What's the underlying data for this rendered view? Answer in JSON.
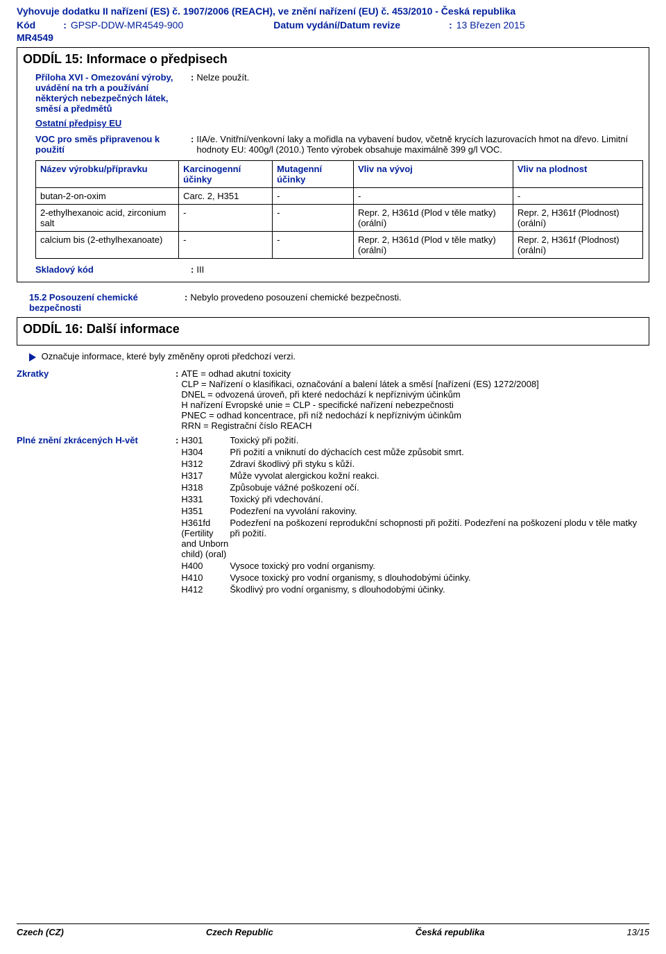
{
  "header": {
    "compliance": "Vyhovuje dodatku II nařízení (ES) č. 1907/2006 (REACH), ve znění nařízení (EU) č. 453/2010 - Česká republika",
    "code_label": "Kód",
    "code_value": "GPSP-DDW-MR4549-900",
    "date_label": "Datum vydání/Datum revize",
    "date_value": "13 Březen 2015",
    "mr": "MR4549"
  },
  "section15": {
    "title": "ODDÍL 15: Informace o předpisech",
    "annex_label": "Příloha XVI - Omezování výroby, uvádění na trh a používání některých nebezpečných látek, směsí a předmětů",
    "annex_value": "Nelze použít.",
    "other_regs": "Ostatní předpisy EU",
    "voc_label": "VOC pro směs připravenou k použití",
    "voc_value": "IIA/e. Vnitřní/venkovní laky a mořidla na vybavení budov, včetně krycích lazurovacích hmot na dřevo. Limitní hodnoty EU: 400g/l (2010.) Tento výrobek obsahuje maximálně 399 g/l VOC.",
    "table": {
      "headers": [
        "Název výrobku/přípravku",
        "Karcinogenní účinky",
        "Mutagenní účinky",
        "Vliv na vývoj",
        "Vliv na plodnost"
      ],
      "rows": [
        [
          "butan-2-on-oxim",
          "Carc. 2, H351",
          "-",
          "-",
          "-"
        ],
        [
          "2-ethylhexanoic acid, zirconium salt",
          "-",
          "-",
          "Repr. 2, H361d (Plod v těle matky) (orální)",
          "Repr. 2, H361f (Plodnost) (orální)"
        ],
        [
          "calcium bis (2-ethylhexanoate)",
          "-",
          "-",
          "Repr. 2, H361d (Plod v těle matky) (orální)",
          "Repr. 2, H361f (Plodnost) (orální)"
        ]
      ]
    },
    "stock_label": "Skladový kód",
    "stock_value": "III",
    "assess_label": "15.2 Posouzení chemické bezpečnosti",
    "assess_value": "Nebylo provedeno posouzení chemické bezpečnosti."
  },
  "section16": {
    "title": "ODDÍL 16: Další informace",
    "changed": "Označuje informace, které byly změněny oproti předchozí verzi.",
    "abbr_label": "Zkratky",
    "abbr_lines": [
      "ATE = odhad akutní toxicity",
      "CLP = Nařízení o klasifikaci, označování a balení látek a směsí [nařízení (ES) 1272/2008]",
      "DNEL = odvozená úroveň, při které nedochází k nepříznivým účinkům",
      "H nařízení Evropské unie = CLP - specifické nařízení nebezpečnosti",
      "PNEC = odhad koncentrace, při níž nedochází k nepříznivým účinkům",
      "RRN = Registrační číslo REACH"
    ],
    "hfull_label": "Plné znění zkrácených H-vět",
    "h_items": [
      {
        "code": "H301",
        "text": "Toxický při požití."
      },
      {
        "code": "H304",
        "text": "Při požití a vniknutí do dýchacích cest může způsobit smrt."
      },
      {
        "code": "H312",
        "text": "Zdraví škodlivý při styku s kůží."
      },
      {
        "code": "H317",
        "text": "Může vyvolat alergickou kožní reakci."
      },
      {
        "code": "H318",
        "text": "Způsobuje vážné poškození očí."
      },
      {
        "code": "H331",
        "text": "Toxický při vdechování."
      },
      {
        "code": "H351",
        "text": "Podezření na vyvolání rakoviny."
      },
      {
        "code": "H361fd (Fertility and Unborn child) (oral)",
        "text": "Podezření na poškození reprodukční schopnosti při požití. Podezření na poškození plodu v těle matky při požití."
      },
      {
        "code": "H400",
        "text": "Vysoce toxický pro vodní organismy."
      },
      {
        "code": "H410",
        "text": "Vysoce toxický pro vodní organismy, s dlouhodobými účinky."
      },
      {
        "code": "H412",
        "text": "Škodlivý pro vodní organismy, s dlouhodobými účinky."
      }
    ]
  },
  "footer": {
    "left": "Czech (CZ)",
    "mid": "Czech Republic",
    "mid2": "Česká republika",
    "page": "13/15"
  }
}
